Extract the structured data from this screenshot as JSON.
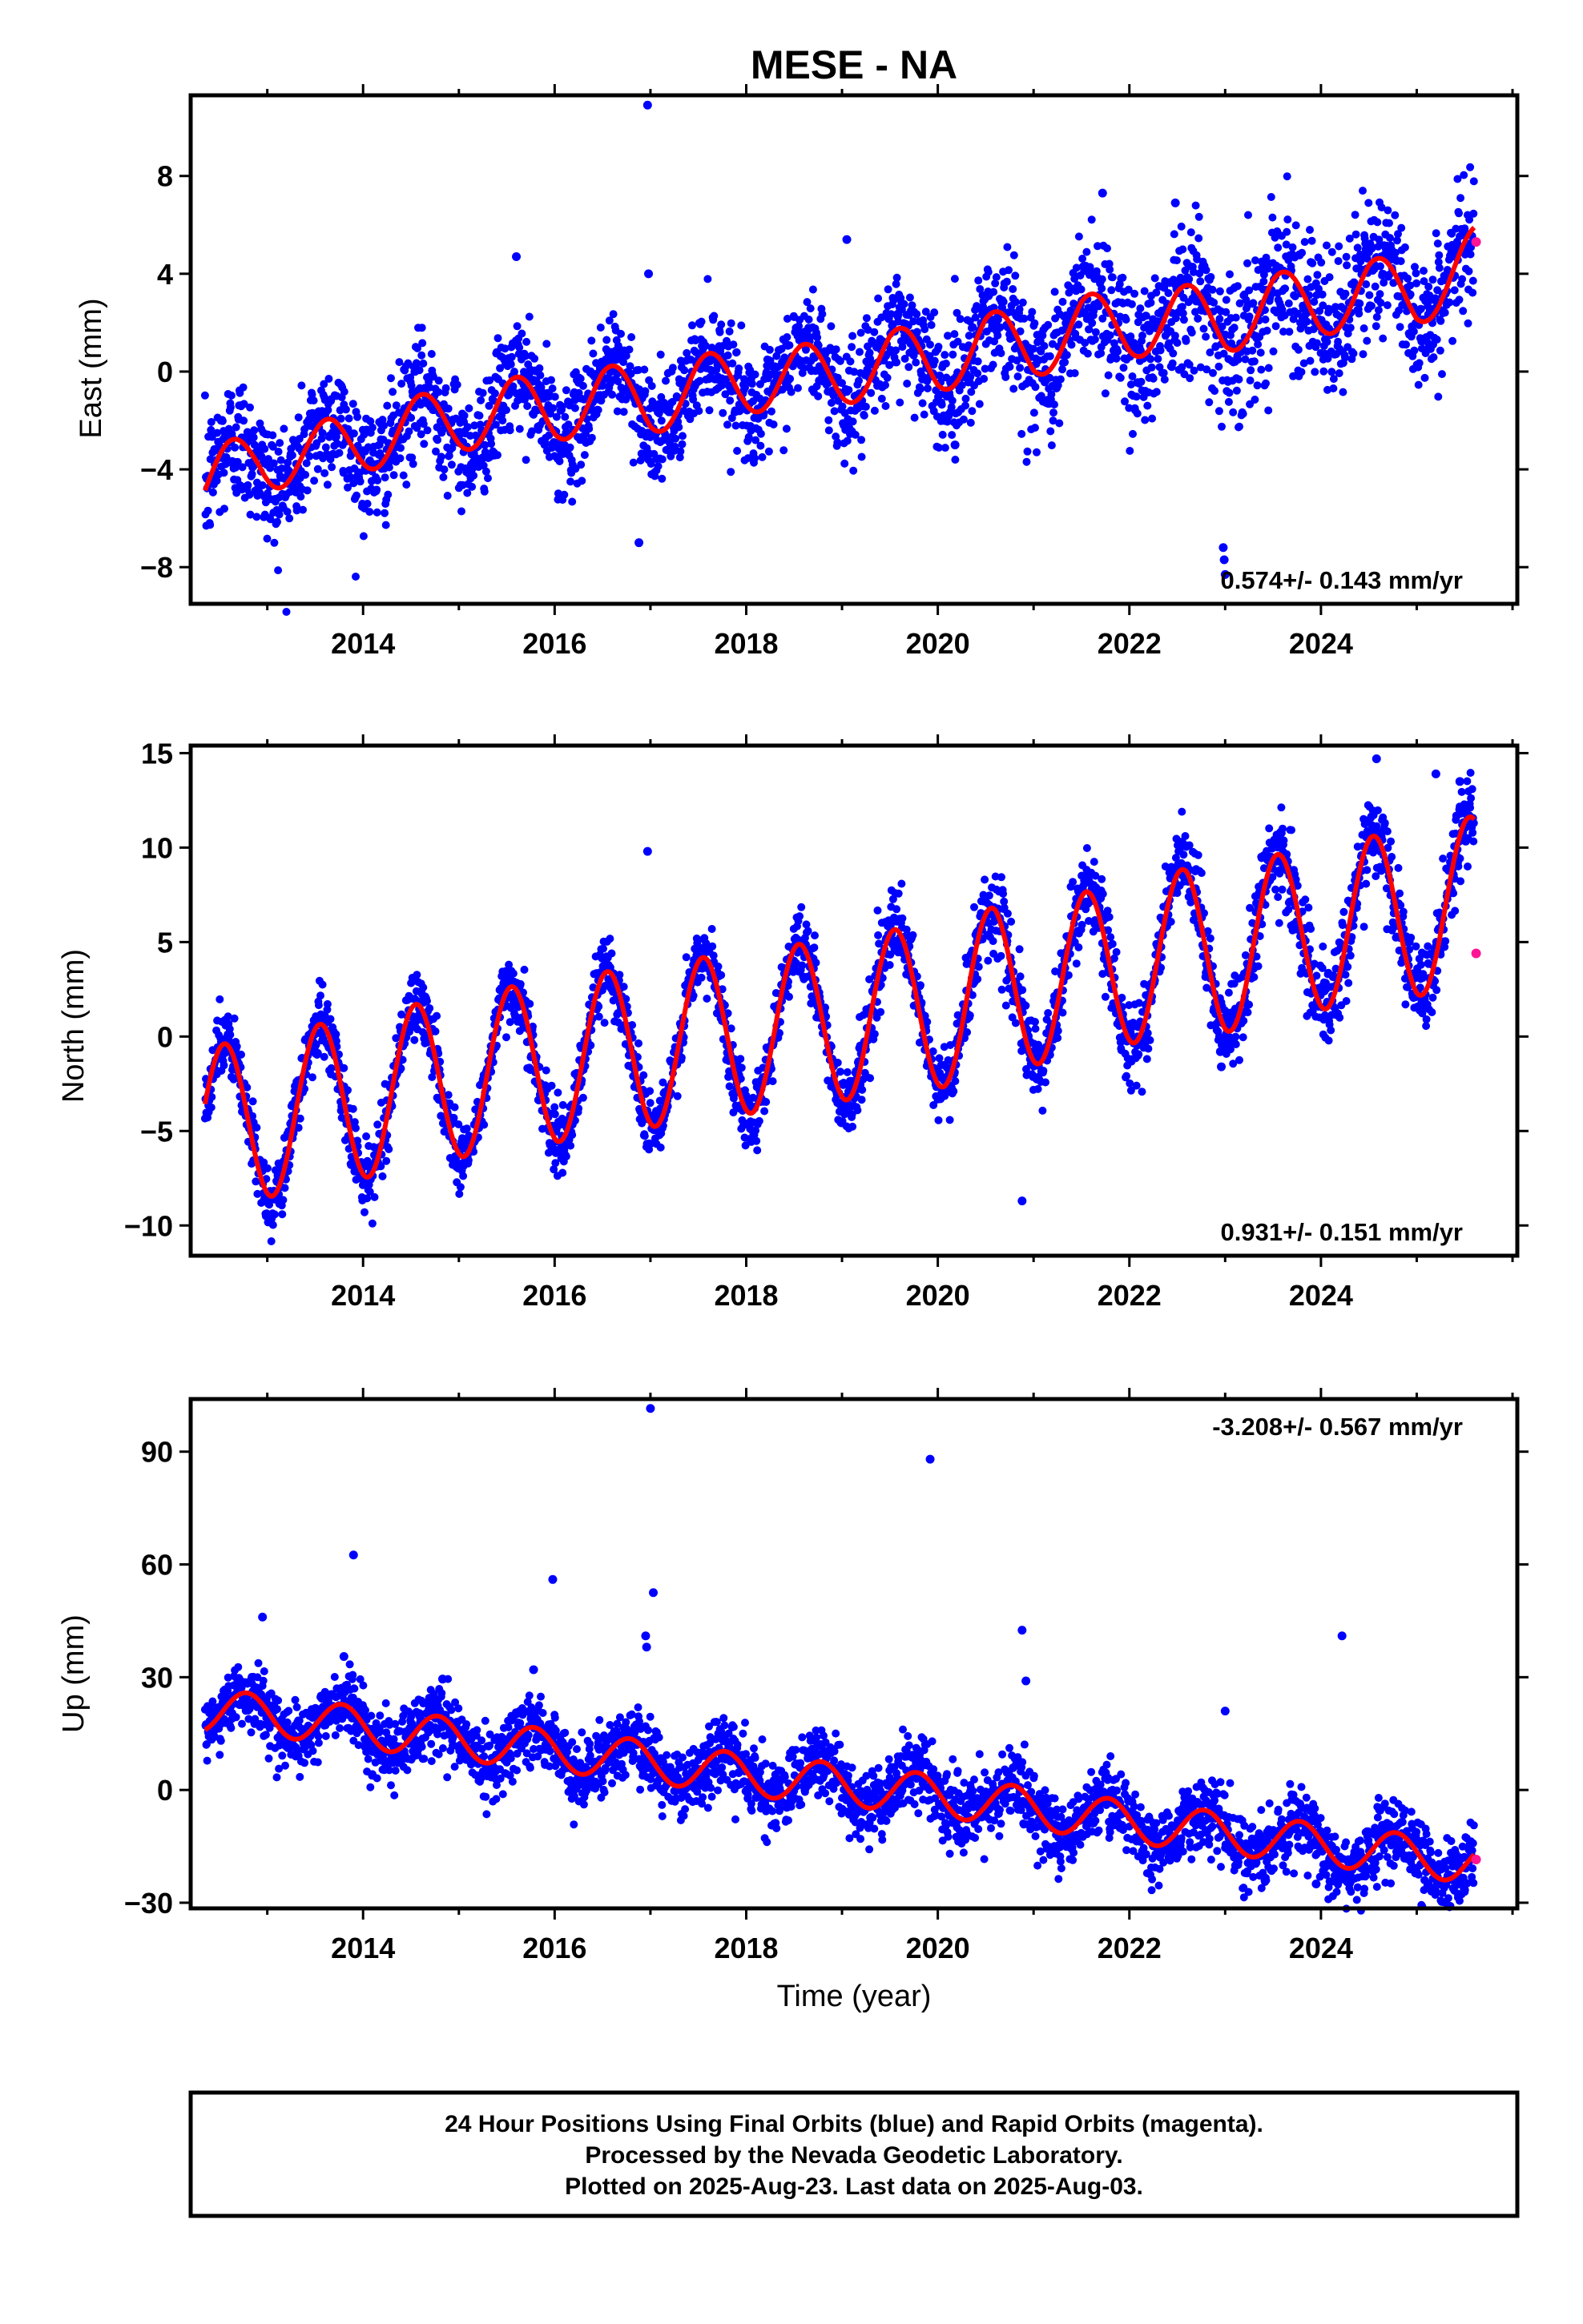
{
  "figure_title": "MESE - NA",
  "x_axis_label": "Time (year)",
  "footer": {
    "line1": "24 Hour Positions Using Final Orbits (blue) and Rapid Orbits (magenta).",
    "line2": "Processed by the Nevada Geodetic Laboratory.",
    "line3": "Plotted on 2025-Aug-23. Last data on 2025-Aug-03."
  },
  "colors": {
    "final_orbits": "#0000ff",
    "rapid_orbits": "#ff1493",
    "model_fit": "#ff0000",
    "frame": "#000000"
  },
  "chart_data": [
    {
      "type": "scatter",
      "component": "east",
      "ylabel": "East (mm)",
      "xlabel": "",
      "xlim": [
        2012.2,
        2026.05
      ],
      "ylim": [
        -9.5,
        11.3
      ],
      "x_ticks": [
        2014,
        2016,
        2018,
        2020,
        2022,
        2024
      ],
      "y_ticks": [
        -8,
        -4,
        0,
        4,
        8
      ],
      "rate_text": "0.574+/- 0.143 mm/yr",
      "rate_position": "bottom-right",
      "model": {
        "start_year": 2012.35,
        "end_year": 2025.6,
        "knots": [
          [
            2012.35,
            -4.7
          ],
          [
            2012.9,
            -3.5
          ],
          [
            2013.5,
            -3.4
          ],
          [
            2014.0,
            -2.8
          ],
          [
            2014.5,
            -2.3
          ],
          [
            2015.0,
            -2.0
          ],
          [
            2015.5,
            -1.5
          ],
          [
            2016.0,
            -1.6
          ],
          [
            2016.5,
            -1.0
          ],
          [
            2017.0,
            -1.3
          ],
          [
            2017.5,
            -0.6
          ],
          [
            2018.0,
            -0.4
          ],
          [
            2018.5,
            -0.2
          ],
          [
            2019.0,
            -0.1
          ],
          [
            2019.5,
            0.5
          ],
          [
            2020.0,
            0.4
          ],
          [
            2020.5,
            1.2
          ],
          [
            2021.0,
            1.0
          ],
          [
            2021.5,
            1.9
          ],
          [
            2022.0,
            1.8
          ],
          [
            2022.5,
            2.3
          ],
          [
            2023.0,
            2.0
          ],
          [
            2023.5,
            2.8
          ],
          [
            2024.0,
            2.7
          ],
          [
            2024.5,
            3.4
          ],
          [
            2025.0,
            3.1
          ],
          [
            2025.6,
            4.6
          ]
        ],
        "annual_amplitude": 1.3,
        "annual_peak": 0.62
      },
      "scatter_std": [
        [
          2012.35,
          1.4
        ],
        [
          2014.0,
          1.2
        ],
        [
          2018.0,
          1.0
        ],
        [
          2020.5,
          1.3
        ],
        [
          2022.5,
          1.6
        ],
        [
          2024.0,
          1.5
        ],
        [
          2025.6,
          1.2
        ]
      ],
      "outliers": [
        [
          2016.97,
          10.9
        ],
        [
          2016.98,
          4.0
        ],
        [
          2016.88,
          -7.0
        ],
        [
          2022.98,
          -7.2
        ],
        [
          2022.99,
          -7.7
        ],
        [
          2023.0,
          -8.3
        ],
        [
          2021.72,
          7.3
        ],
        [
          2022.48,
          6.9
        ],
        [
          2019.05,
          5.4
        ],
        [
          2015.6,
          4.7
        ],
        [
          2020.18,
          -3.0
        ]
      ],
      "rapid_points": [
        [
          2025.62,
          5.3
        ]
      ]
    },
    {
      "type": "scatter",
      "component": "north",
      "ylabel": "North (mm)",
      "xlabel": "",
      "xlim": [
        2012.2,
        2026.05
      ],
      "ylim": [
        -11.6,
        15.4
      ],
      "x_ticks": [
        2014,
        2016,
        2018,
        2020,
        2022,
        2024
      ],
      "y_ticks": [
        -10,
        -5,
        0,
        5,
        10,
        15
      ],
      "rate_text": "0.931+/- 0.151 mm/yr",
      "rate_position": "bottom-right",
      "model": {
        "start_year": 2012.35,
        "end_year": 2025.6,
        "knots": [
          [
            2012.35,
            -4.9
          ],
          [
            2013.0,
            -4.2
          ],
          [
            2014.0,
            -3.2
          ],
          [
            2015.0,
            -2.1
          ],
          [
            2016.0,
            -1.3
          ],
          [
            2017.0,
            -0.5
          ],
          [
            2018.0,
            0.2
          ],
          [
            2019.0,
            0.9
          ],
          [
            2019.6,
            1.4
          ],
          [
            2020.2,
            1.7
          ],
          [
            2020.6,
            2.6
          ],
          [
            2021.0,
            2.8
          ],
          [
            2021.5,
            3.3
          ],
          [
            2022.0,
            3.9
          ],
          [
            2022.6,
            4.6
          ],
          [
            2023.0,
            4.5
          ],
          [
            2023.5,
            5.3
          ],
          [
            2024.0,
            5.7
          ],
          [
            2024.5,
            6.3
          ],
          [
            2025.0,
            6.4
          ],
          [
            2025.6,
            7.4
          ]
        ],
        "annual_amplitude": 4.3,
        "annual_peak": 0.55
      },
      "scatter_std": [
        [
          2012.35,
          0.9
        ],
        [
          2018.0,
          0.9
        ],
        [
          2022.6,
          1.2
        ],
        [
          2025.6,
          1.1
        ]
      ],
      "outliers": [
        [
          2016.97,
          9.8
        ],
        [
          2020.88,
          -8.7
        ],
        [
          2022.95,
          -0.8
        ],
        [
          2022.96,
          -1.6
        ],
        [
          2024.58,
          14.7
        ],
        [
          2025.2,
          13.9
        ],
        [
          2025.45,
          13.5
        ]
      ],
      "rapid_points": [
        [
          2025.62,
          4.4
        ]
      ]
    },
    {
      "type": "scatter",
      "component": "up",
      "ylabel": "Up (mm)",
      "xlabel": "Time (year)",
      "xlim": [
        2012.2,
        2026.05
      ],
      "ylim": [
        -31.5,
        104
      ],
      "x_ticks": [
        2014,
        2016,
        2018,
        2020,
        2022,
        2024
      ],
      "y_ticks": [
        -30,
        0,
        30,
        60,
        90
      ],
      "rate_text": "-3.208+/- 0.567 mm/yr",
      "rate_position": "top-right",
      "model": {
        "start_year": 2012.35,
        "end_year": 2025.6,
        "knots": [
          [
            2012.35,
            21.0
          ],
          [
            2013.0,
            20.0
          ],
          [
            2014.0,
            16.5
          ],
          [
            2015.0,
            13.5
          ],
          [
            2016.0,
            10.5
          ],
          [
            2017.0,
            7.5
          ],
          [
            2018.0,
            4.0
          ],
          [
            2019.0,
            1.5
          ],
          [
            2020.0,
            -1.5
          ],
          [
            2021.0,
            -5.0
          ],
          [
            2022.0,
            -8.5
          ],
          [
            2023.0,
            -11.5
          ],
          [
            2024.0,
            -14.5
          ],
          [
            2025.0,
            -17.5
          ],
          [
            2025.6,
            -19.5
          ]
        ],
        "annual_amplitude": 5.5,
        "annual_peak": 0.78
      },
      "scatter_std": [
        [
          2012.35,
          4.0
        ],
        [
          2020.0,
          4.8
        ],
        [
          2025.6,
          4.5
        ]
      ],
      "outliers": [
        [
          2017.0,
          101.5
        ],
        [
          2019.92,
          88.0
        ],
        [
          2013.9,
          62.5
        ],
        [
          2015.98,
          56.0
        ],
        [
          2017.03,
          52.5
        ],
        [
          2016.95,
          41.0
        ],
        [
          2016.96,
          38.0
        ],
        [
          2024.22,
          41.0
        ],
        [
          2020.88,
          42.5
        ],
        [
          2020.92,
          29.0
        ],
        [
          2012.95,
          46.0
        ],
        [
          2013.8,
          35.5
        ],
        [
          2014.83,
          29.5
        ],
        [
          2015.78,
          32.0
        ],
        [
          2023.0,
          21.0
        ],
        [
          2023.95,
          -25.0
        ]
      ],
      "rapid_points": [
        [
          2025.62,
          -18.5
        ]
      ]
    }
  ]
}
